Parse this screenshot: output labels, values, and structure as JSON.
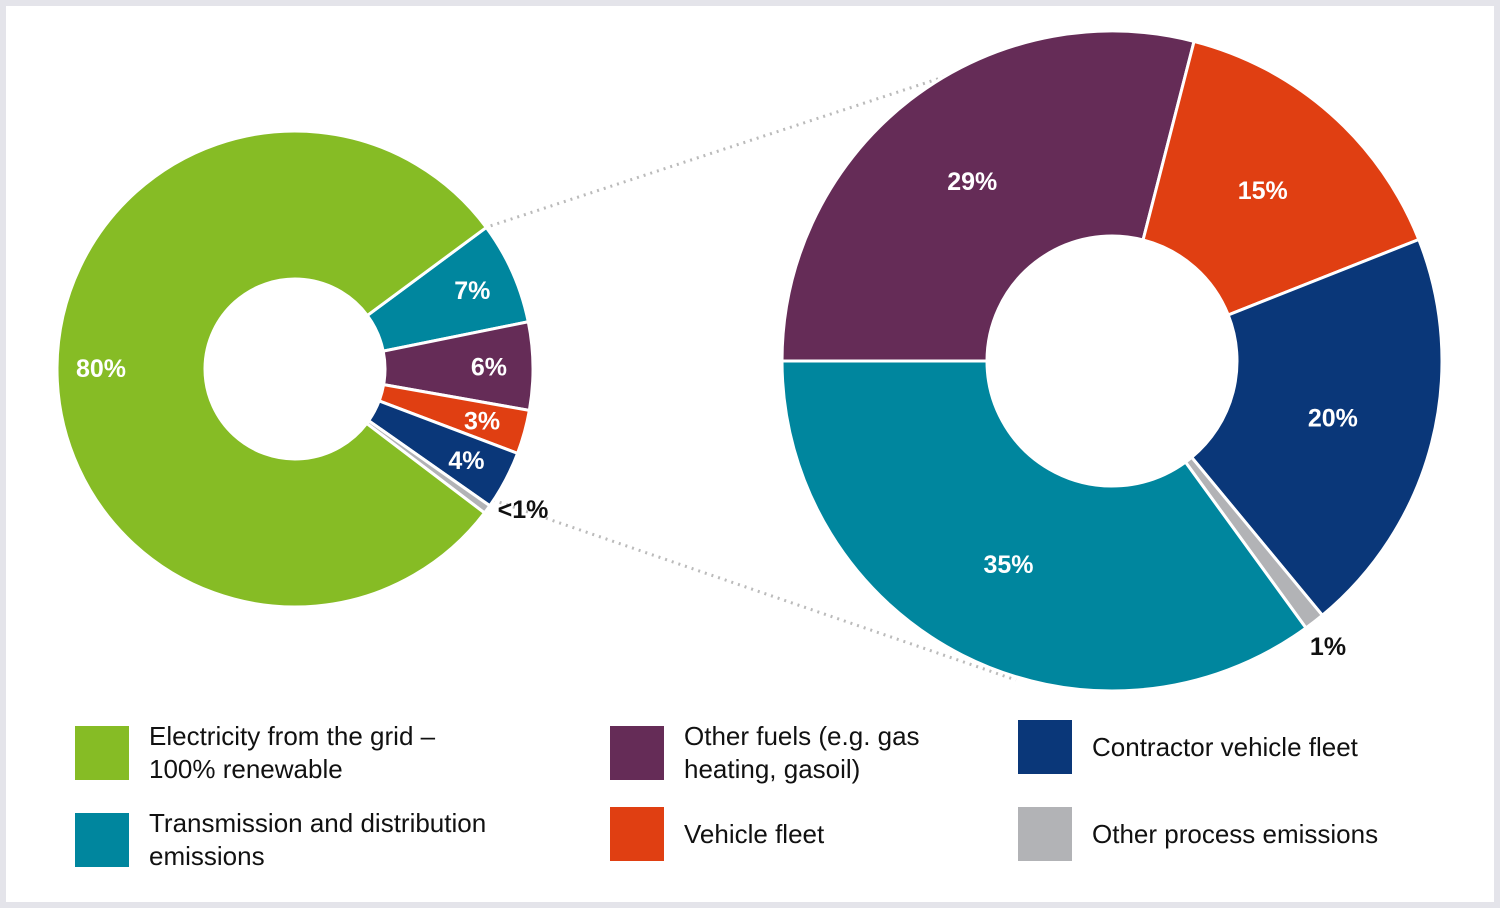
{
  "chart_data": [
    {
      "type": "donut",
      "slices": [
        {
          "key": "transmission",
          "value": 7,
          "label": "7%",
          "color": "#00869e"
        },
        {
          "key": "other_fuels",
          "value": 6,
          "label": "6%",
          "color": "#652c57"
        },
        {
          "key": "vehicle_fleet",
          "value": 3,
          "label": "3%",
          "color": "#e03f12"
        },
        {
          "key": "contractor",
          "value": 4,
          "label": "4%",
          "color": "#0a3779"
        },
        {
          "key": "other_process",
          "value": 0.6,
          "label": "<1%",
          "color": "#b2b3b6"
        },
        {
          "key": "electricity",
          "value": 80,
          "label": "80%",
          "color": "#86bc25"
        }
      ]
    },
    {
      "type": "donut",
      "slices": [
        {
          "key": "other_fuels",
          "value": 29,
          "label": "29%",
          "color": "#652c57"
        },
        {
          "key": "vehicle_fleet",
          "value": 15,
          "label": "15%",
          "color": "#e03f12"
        },
        {
          "key": "contractor",
          "value": 20,
          "label": "20%",
          "color": "#0a3779"
        },
        {
          "key": "other_process",
          "value": 1,
          "label": "1%",
          "color": "#b2b3b6"
        },
        {
          "key": "transmission",
          "value": 35,
          "label": "35%",
          "color": "#00869e"
        }
      ]
    }
  ],
  "legend": [
    {
      "label": "Electricity from the grid –\n100% renewable",
      "color": "#86bc25"
    },
    {
      "label": "Transmission and distribution\nemissions",
      "color": "#00869e"
    },
    {
      "label": "Other fuels (e.g. gas\nheating, gasoil)",
      "color": "#652c57"
    },
    {
      "label": "Vehicle fleet",
      "color": "#e03f12"
    },
    {
      "label": "Contractor vehicle fleet",
      "color": "#0a3779"
    },
    {
      "label": "Other process emissions",
      "color": "#b2b3b6"
    }
  ]
}
